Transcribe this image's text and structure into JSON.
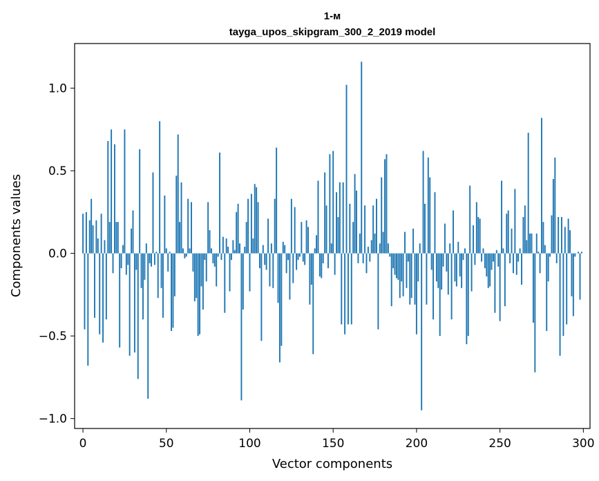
{
  "chart_data": {
    "type": "bar",
    "title_line1": "1-м",
    "title_line2": "tayga_upos_skipgram_300_2_2019 model",
    "xlabel": "Vector components",
    "ylabel": "Components values",
    "xlim": [
      -5,
      304
    ],
    "ylim": [
      -1.06,
      1.27
    ],
    "xticks": [
      0,
      50,
      100,
      150,
      200,
      250,
      300
    ],
    "xtick_labels": [
      "0",
      "50",
      "100",
      "150",
      "200",
      "250",
      "300"
    ],
    "yticks": [
      -1.0,
      -0.5,
      0.0,
      0.5,
      1.0
    ],
    "ytick_labels": [
      "−1.0",
      "−0.5",
      "0.0",
      "0.5",
      "1.0"
    ],
    "bar_color": "#1f77b4",
    "values": [
      0.24,
      -0.46,
      0.25,
      -0.68,
      0.2,
      0.33,
      0.17,
      -0.39,
      0.2,
      0.09,
      -0.49,
      0.24,
      -0.54,
      0.08,
      -0.4,
      0.68,
      0.19,
      0.75,
      -0.12,
      0.66,
      0.19,
      0.19,
      -0.57,
      -0.09,
      0.05,
      0.75,
      -0.13,
      -0.07,
      -0.62,
      0.15,
      0.26,
      -0.6,
      -0.1,
      -0.76,
      0.63,
      -0.21,
      -0.4,
      -0.16,
      0.06,
      -0.88,
      -0.06,
      -0.08,
      0.49,
      -0.07,
      0.01,
      -0.27,
      0.8,
      -0.21,
      -0.39,
      0.35,
      0.03,
      -0.11,
      0.01,
      -0.47,
      -0.45,
      -0.26,
      0.47,
      0.72,
      0.19,
      0.43,
      0.03,
      -0.03,
      -0.02,
      0.33,
      0.03,
      0.31,
      -0.11,
      -0.29,
      -0.27,
      -0.5,
      -0.49,
      -0.2,
      -0.34,
      -0.04,
      -0.17,
      0.31,
      0.14,
      0.03,
      -0.06,
      -0.08,
      -0.2,
      -0.02,
      0.61,
      -0.04,
      0.1,
      -0.36,
      0.09,
      0.04,
      -0.23,
      -0.04,
      0.08,
      0.02,
      0.25,
      0.3,
      0.06,
      -0.89,
      -0.34,
      0.04,
      0.19,
      0.33,
      -0.23,
      0.36,
      0.09,
      0.42,
      0.4,
      0.31,
      -0.09,
      -0.53,
      0.05,
      -0.07,
      -0.1,
      0.21,
      -0.2,
      0.06,
      -0.21,
      0.33,
      0.64,
      -0.3,
      -0.66,
      -0.56,
      0.07,
      0.05,
      -0.12,
      -0.04,
      -0.28,
      0.33,
      -0.18,
      0.28,
      -0.1,
      -0.04,
      -0.02,
      0.19,
      -0.05,
      -0.07,
      0.2,
      0.16,
      -0.31,
      -0.19,
      -0.61,
      0.03,
      0.11,
      0.44,
      -0.14,
      -0.15,
      -0.06,
      0.49,
      0.29,
      -0.09,
      0.6,
      0.06,
      0.62,
      -0.13,
      0.37,
      0.22,
      0.43,
      -0.43,
      0.43,
      -0.49,
      1.02,
      -0.43,
      0.3,
      -0.43,
      0.19,
      0.48,
      0.38,
      -0.06,
      0.12,
      1.16,
      -0.06,
      0.29,
      -0.12,
      0.04,
      -0.05,
      0.08,
      0.29,
      0.12,
      0.33,
      -0.46,
      0.06,
      0.46,
      0.13,
      0.57,
      0.6,
      0.06,
      -0.02,
      -0.32,
      -0.09,
      -0.13,
      -0.15,
      -0.16,
      -0.27,
      -0.17,
      -0.26,
      0.13,
      -0.21,
      -0.05,
      -0.31,
      -0.27,
      0.15,
      -0.31,
      -0.49,
      -0.17,
      0.06,
      -0.95,
      0.62,
      0.3,
      -0.31,
      0.58,
      0.46,
      -0.1,
      -0.4,
      0.37,
      -0.17,
      -0.21,
      -0.5,
      -0.22,
      -0.08,
      0.18,
      -0.11,
      -0.25,
      0.06,
      -0.4,
      0.26,
      -0.17,
      -0.2,
      0.07,
      -0.14,
      -0.21,
      -0.04,
      0.03,
      -0.55,
      -0.5,
      0.41,
      -0.23,
      0.17,
      -0.07,
      0.31,
      0.22,
      0.21,
      -0.05,
      0.03,
      -0.09,
      -0.14,
      -0.21,
      -0.2,
      -0.1,
      -0.05,
      -0.36,
      0.02,
      -0.08,
      -0.41,
      0.44,
      0.03,
      -0.32,
      0.24,
      0.26,
      -0.06,
      0.15,
      -0.12,
      0.39,
      -0.13,
      -0.05,
      0.03,
      -0.19,
      0.22,
      0.29,
      0.08,
      0.73,
      0.12,
      0.12,
      -0.42,
      -0.72,
      0.12,
      0.01,
      -0.12,
      0.82,
      0.19,
      0.05,
      -0.47,
      -0.17,
      -0.02,
      0.23,
      0.45,
      0.58,
      -0.06,
      0.22,
      -0.62,
      0.22,
      -0.5,
      0.16,
      -0.43,
      0.21,
      0.14,
      -0.26,
      -0.38,
      -0.02,
      0.0,
      0.01,
      -0.28,
      0.01
    ]
  }
}
